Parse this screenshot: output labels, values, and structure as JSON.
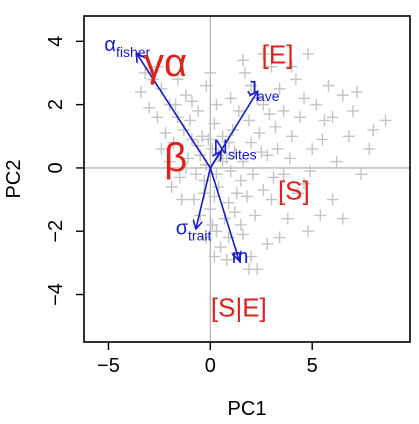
{
  "chart_data": {
    "type": "scatter",
    "title": "",
    "xlabel": "PC1",
    "ylabel": "PC2",
    "xlim": [
      -6.2,
      9.8
    ],
    "ylim": [
      -5.5,
      4.8
    ],
    "xticks": [
      -5,
      0,
      5
    ],
    "yticks": [
      -4,
      -2,
      0,
      2,
      4
    ],
    "tick_labels_x": [
      "−5",
      "0",
      "5"
    ],
    "tick_labels_y": [
      "−4",
      "−2",
      "0",
      "2",
      "4"
    ],
    "reference_lines": {
      "x": 0,
      "y": 0
    },
    "colors": {
      "points": "#c4c4c4",
      "vectors": "#1a1acc",
      "group_labels": "#e0201b",
      "reference_lines": "#b5b5b5"
    },
    "vectors": [
      {
        "label_base": "α",
        "label_sub": "fisher",
        "x": -3.6,
        "y": 3.6,
        "label_x": -5.2,
        "label_y": 3.7
      },
      {
        "label_base": "J",
        "label_sub": "ave",
        "x": 2.3,
        "y": 2.4,
        "label_x": 1.8,
        "label_y": 2.3
      },
      {
        "label_base": "N",
        "label_sub": "sites",
        "x": 0.5,
        "y": 0.5,
        "label_x": 0.15,
        "label_y": 0.45
      },
      {
        "label_base": "σ",
        "label_sub": "trait",
        "x": -0.7,
        "y": -1.9,
        "label_x": -1.7,
        "label_y": -2.1
      },
      {
        "label_base": "m",
        "label_sub": "",
        "x": 1.4,
        "y": -2.9,
        "label_x": 1.05,
        "label_y": -3.0
      }
    ],
    "group_labels": [
      {
        "text": "γα",
        "x": -2.2,
        "y": 2.9,
        "size": "large"
      },
      {
        "text": "[E]",
        "x": 3.3,
        "y": 3.3,
        "size": "medium"
      },
      {
        "text": "β",
        "x": -1.7,
        "y": -0.1,
        "size": "large"
      },
      {
        "text": "[S]",
        "x": 4.1,
        "y": -1.0,
        "size": "medium"
      },
      {
        "text": "[S|E]",
        "x": 1.4,
        "y": -4.7,
        "size": "medium"
      }
    ],
    "points": [
      [
        -0.2,
        0.1
      ],
      [
        0.3,
        -0.2
      ],
      [
        -0.5,
        0.4
      ],
      [
        0.1,
        0.6
      ],
      [
        0.8,
        0.3
      ],
      [
        -0.9,
        0.9
      ],
      [
        0.4,
        -0.6
      ],
      [
        -0.3,
        -0.4
      ],
      [
        1.2,
        0.5
      ],
      [
        -1.3,
        1.2
      ],
      [
        0.6,
        1.0
      ],
      [
        1.5,
        -0.4
      ],
      [
        -0.7,
        -0.2
      ],
      [
        0.9,
        -1.1
      ],
      [
        -1.6,
        1.6
      ],
      [
        2.0,
        0.8
      ],
      [
        0.2,
        1.4
      ],
      [
        -0.4,
        1.0
      ],
      [
        1.1,
        1.2
      ],
      [
        -1.1,
        0.3
      ],
      [
        2.4,
        1.1
      ],
      [
        0.7,
        -1.6
      ],
      [
        1.8,
        -0.9
      ],
      [
        -2.0,
        2.0
      ],
      [
        0.0,
        -1.3
      ],
      [
        2.8,
        0.4
      ],
      [
        -0.6,
        1.8
      ],
      [
        1.4,
        1.8
      ],
      [
        -1.8,
        0.8
      ],
      [
        3.2,
        1.3
      ],
      [
        0.3,
        -2.0
      ],
      [
        2.2,
        -1.5
      ],
      [
        -2.4,
        2.5
      ],
      [
        1.0,
        2.2
      ],
      [
        3.6,
        -0.2
      ],
      [
        -1.2,
        2.3
      ],
      [
        0.5,
        -2.5
      ],
      [
        2.6,
        2.0
      ],
      [
        4.0,
        1.0
      ],
      [
        1.6,
        -2.1
      ],
      [
        -2.8,
        2.8
      ],
      [
        0.8,
        -2.9
      ],
      [
        3.0,
        -1.0
      ],
      [
        -0.2,
        2.6
      ],
      [
        4.4,
        1.6
      ],
      [
        1.3,
        -2.7
      ],
      [
        -3.2,
        3.0
      ],
      [
        2.0,
        2.6
      ],
      [
        5.0,
        0.6
      ],
      [
        3.4,
        2.5
      ],
      [
        4.6,
        -0.5
      ],
      [
        1.7,
        3.0
      ],
      [
        5.6,
        1.5
      ],
      [
        6.2,
        0.2
      ],
      [
        3.0,
        3.2
      ],
      [
        6.8,
        1.0
      ],
      [
        7.4,
        -0.2
      ],
      [
        5.2,
        2.0
      ],
      [
        4.2,
        2.8
      ],
      [
        6.0,
        -1.0
      ],
      [
        7.0,
        1.8
      ],
      [
        5.8,
        2.6
      ],
      [
        8.6,
        1.5
      ],
      [
        3.8,
        -1.6
      ],
      [
        4.8,
        -2.0
      ],
      [
        6.5,
        -1.6
      ],
      [
        2.8,
        -2.4
      ],
      [
        1.9,
        -3.2
      ],
      [
        -1.5,
        -0.3
      ],
      [
        -2.2,
        1.1
      ],
      [
        -1.9,
        -0.6
      ],
      [
        -2.6,
        1.6
      ],
      [
        -3.0,
        1.9
      ],
      [
        -0.8,
        -1.0
      ],
      [
        -1.4,
        -1.0
      ],
      [
        0.1,
        -1.8
      ],
      [
        1.2,
        -1.4
      ],
      [
        0.6,
        0.2
      ],
      [
        -0.1,
        0.9
      ],
      [
        0.4,
        0.4
      ],
      [
        1.0,
        -0.1
      ],
      [
        1.6,
        0.2
      ],
      [
        2.1,
        -0.2
      ],
      [
        2.5,
        0.5
      ],
      [
        0.2,
        -0.9
      ],
      [
        -0.6,
        0.7
      ],
      [
        -1.0,
        1.5
      ],
      [
        0.9,
        0.8
      ],
      [
        1.3,
        -0.8
      ],
      [
        -0.3,
        -0.8
      ],
      [
        3.3,
        0.6
      ],
      [
        3.9,
        0.3
      ],
      [
        4.3,
        -0.8
      ],
      [
        2.6,
        -0.7
      ],
      [
        1.9,
        1.5
      ],
      [
        2.3,
        2.2
      ],
      [
        -0.9,
        2.1
      ],
      [
        -1.7,
        2.0
      ],
      [
        0.3,
        2.0
      ],
      [
        0.0,
        3.0
      ],
      [
        4.0,
        3.2
      ],
      [
        4.8,
        3.6
      ],
      [
        3.4,
        -2.2
      ],
      [
        -2.0,
        0.2
      ],
      [
        -2.4,
        0.6
      ],
      [
        -1.2,
        0.0
      ],
      [
        0.9,
        -2.2
      ],
      [
        0.2,
        -2.8
      ],
      [
        2.0,
        -2.8
      ],
      [
        2.3,
        -3.2
      ],
      [
        5.4,
        -1.5
      ],
      [
        7.8,
        0.6
      ],
      [
        6.5,
        2.3
      ],
      [
        -3.4,
        2.4
      ],
      [
        -2.6,
        3.2
      ],
      [
        -1.6,
        2.8
      ],
      [
        1.6,
        3.4
      ],
      [
        2.6,
        3.6
      ],
      [
        3.6,
        1.8
      ],
      [
        4.6,
        2.2
      ],
      [
        -0.5,
        -1.5
      ],
      [
        1.5,
        -1.8
      ],
      [
        -0.2,
        -2.2
      ],
      [
        3.1,
        -0.3
      ],
      [
        4.9,
        -0.1
      ],
      [
        5.5,
        0.9
      ],
      [
        6.0,
        1.6
      ],
      [
        7.2,
        2.4
      ],
      [
        8.0,
        1.2
      ],
      [
        2.9,
        1.7
      ]
    ]
  }
}
